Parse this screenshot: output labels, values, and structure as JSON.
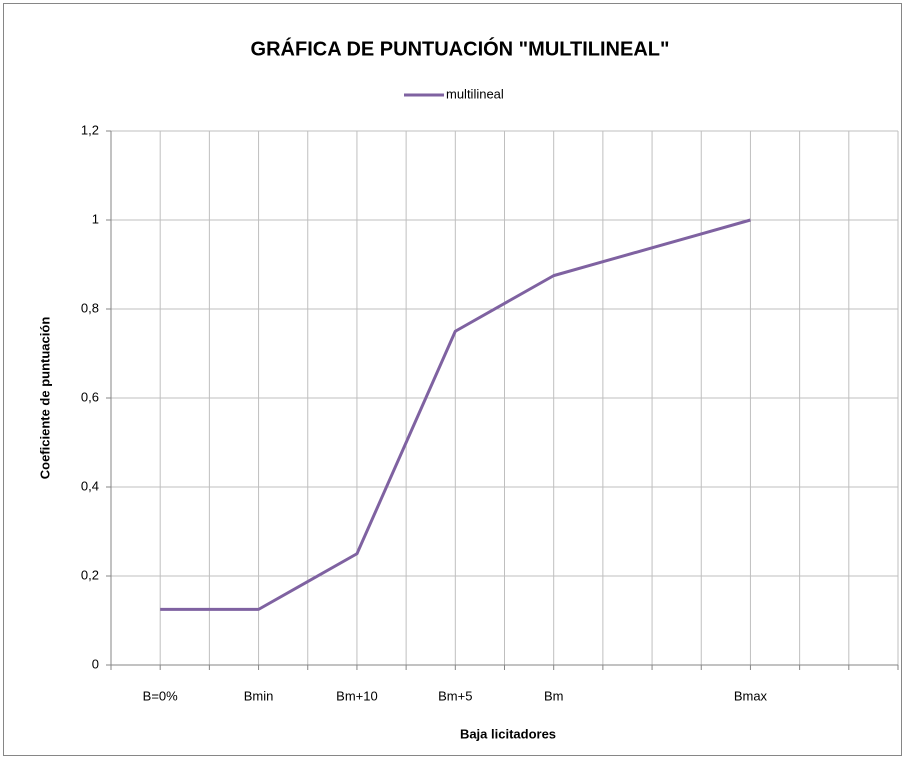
{
  "chart_data": {
    "type": "line",
    "title": "GRÁFICA DE PUNTUACIÓN \"MULTILINEAL\"",
    "xlabel": "Baja licitadores",
    "ylabel": "Coeficiente de puntuación",
    "categories": [
      null,
      "B=0%",
      null,
      "Bmin",
      null,
      "Bm+10",
      null,
      "Bm+5",
      null,
      "Bm",
      null,
      null,
      null,
      "Bmax",
      null,
      null,
      null
    ],
    "series": [
      {
        "name": "multilineal",
        "color": "#7f62a1",
        "values": [
          null,
          0.125,
          0.125,
          0.125,
          0.1875,
          0.25,
          0.5,
          0.75,
          0.8125,
          0.875,
          0.90625,
          0.9375,
          0.96875,
          1,
          null,
          null,
          null
        ]
      }
    ],
    "ylim": [
      0,
      1.2
    ],
    "yticks": [
      0,
      {
        "value": 0.2,
        "label": "0,2"
      },
      {
        "value": 0.4,
        "label": "0,4"
      },
      {
        "value": 0.6,
        "label": "0,6"
      },
      {
        "value": 0.8,
        "label": "0,8"
      },
      1,
      {
        "value": 1.2,
        "label": "1,2"
      }
    ],
    "grid": true,
    "legend": "top"
  }
}
